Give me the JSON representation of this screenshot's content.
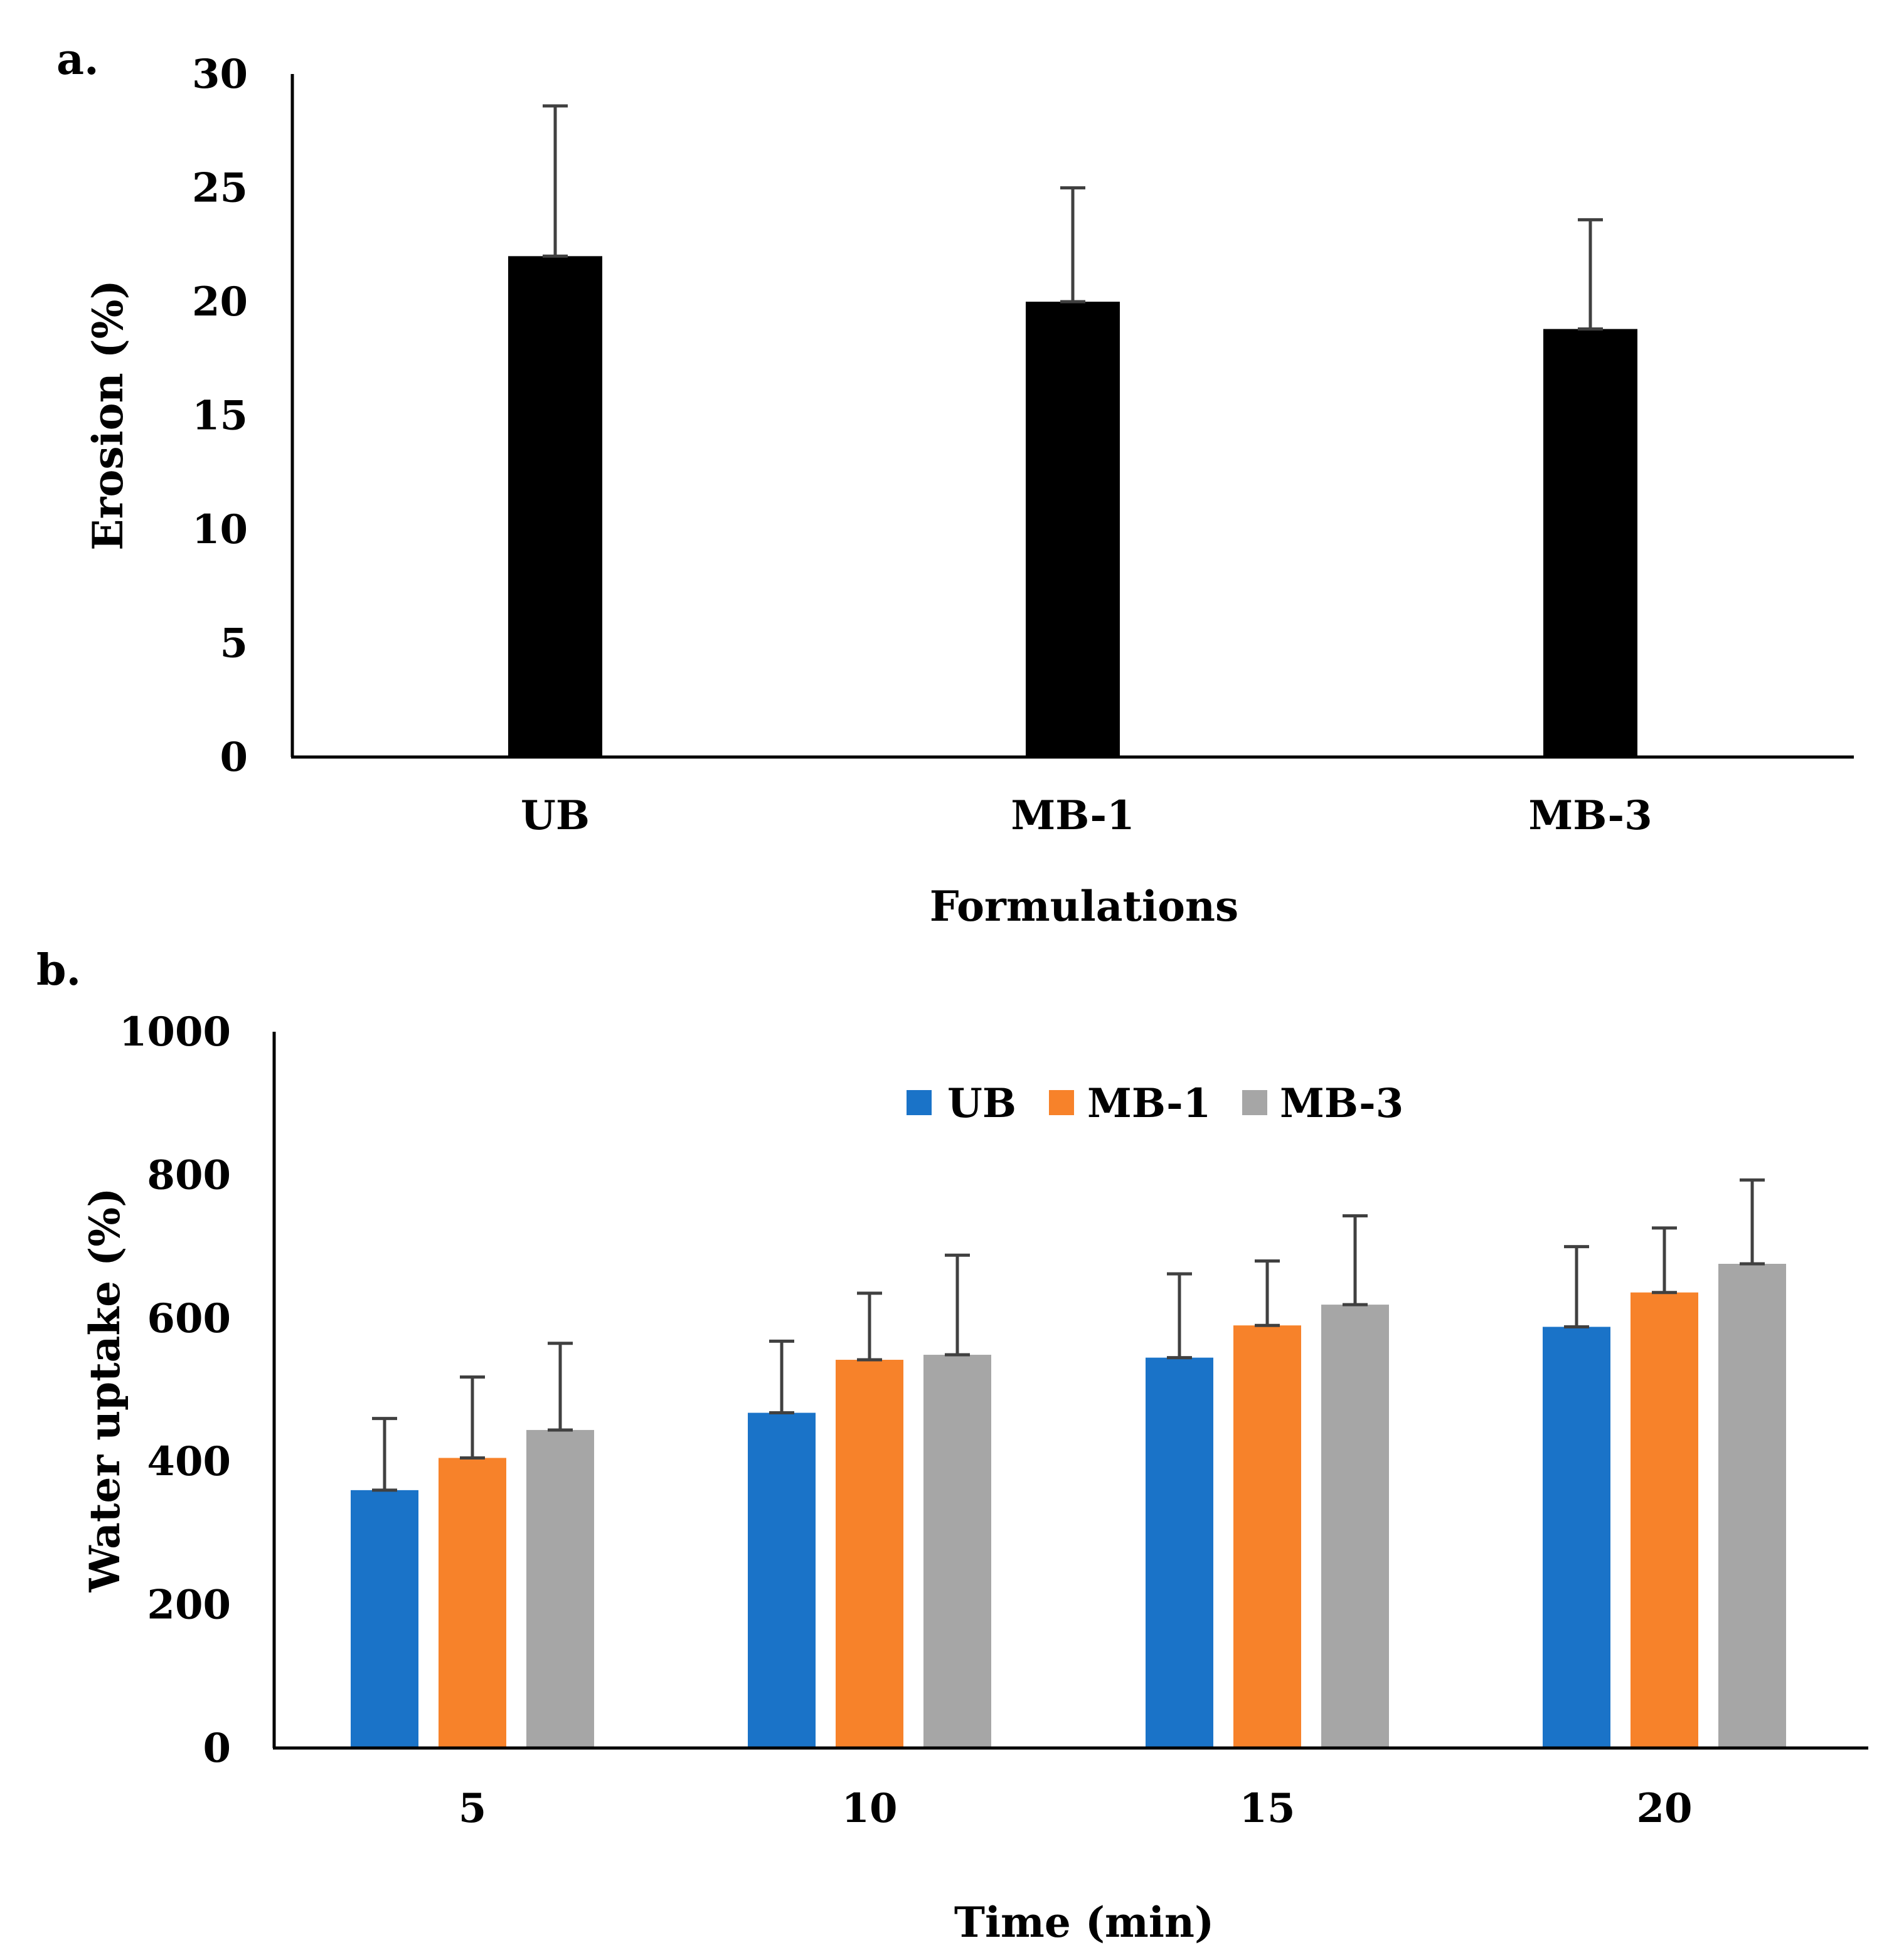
{
  "chart_data": [
    {
      "type": "bar",
      "panel_label": "a.",
      "categories": [
        "UB",
        "MB-1",
        "MB-3"
      ],
      "series": [
        {
          "name": "Erosion",
          "values": [
            22,
            20,
            18.8
          ],
          "errors": [
            6.6,
            5,
            4.8
          ]
        }
      ],
      "title": "",
      "xlabel": "Formulations",
      "ylabel": "Erosion (%)",
      "ylim": [
        0,
        30
      ],
      "yticks": [
        0,
        5,
        10,
        15,
        20,
        25,
        30
      ],
      "grid": false,
      "legend": "none",
      "colors": {
        "bar": "#000000",
        "error": "#404040"
      }
    },
    {
      "type": "bar",
      "panel_label": "b.",
      "categories": [
        "5",
        "10",
        "15",
        "20"
      ],
      "series": [
        {
          "name": "UB",
          "values": [
            360,
            468,
            545,
            588
          ],
          "errors": [
            100,
            100,
            117,
            112
          ]
        },
        {
          "name": "MB-1",
          "values": [
            405,
            542,
            590,
            636
          ],
          "errors": [
            113,
            93,
            90,
            90
          ]
        },
        {
          "name": "MB-3",
          "values": [
            444,
            549,
            619,
            676
          ],
          "errors": [
            121,
            139,
            124,
            117
          ]
        }
      ],
      "title": "",
      "xlabel": "Time (min)",
      "ylabel": "Water uptake (%)",
      "ylim": [
        0,
        1000
      ],
      "yticks": [
        0,
        200,
        400,
        600,
        800,
        1000
      ],
      "grid": false,
      "legend": "top-center",
      "colors": {
        "UB": "#1A73C8",
        "MB-1": "#F7822A",
        "MB-3": "#A6A6A6",
        "error": "#404040"
      }
    }
  ]
}
